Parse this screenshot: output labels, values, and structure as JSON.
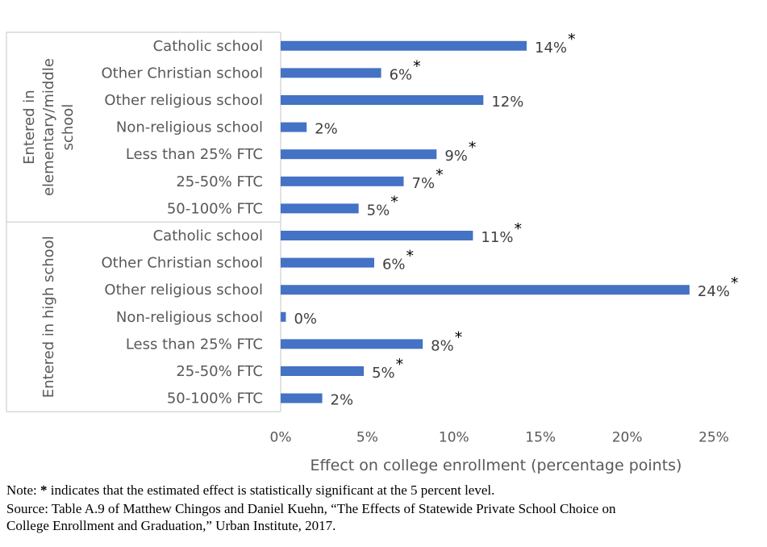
{
  "chart_data": {
    "type": "bar",
    "orientation": "horizontal",
    "xlabel": "Effect on college enrollment (percentage points)",
    "xlim": [
      0,
      25
    ],
    "x_ticks": [
      "0%",
      "5%",
      "10%",
      "15%",
      "20%",
      "25%"
    ],
    "groups": [
      {
        "name": "Entered in elementary/middle school",
        "name_lines": [
          "Entered in",
          "elementary/middle",
          "school"
        ],
        "bars": [
          {
            "category": "Catholic school",
            "value": 14.2,
            "label": "14%",
            "significant": true
          },
          {
            "category": "Other Christian school",
            "value": 5.8,
            "label": "6%",
            "significant": true
          },
          {
            "category": "Other religious school",
            "value": 11.7,
            "label": "12%",
            "significant": false
          },
          {
            "category": "Non-religious school",
            "value": 1.5,
            "label": "2%",
            "significant": false
          },
          {
            "category": "Less than 25% FTC",
            "value": 9.0,
            "label": "9%",
            "significant": true
          },
          {
            "category": "25-50% FTC",
            "value": 7.1,
            "label": "7%",
            "significant": true
          },
          {
            "category": "50-100% FTC",
            "value": 4.5,
            "label": "5%",
            "significant": true
          }
        ]
      },
      {
        "name": "Entered in high school",
        "name_lines": [
          "Entered in high school"
        ],
        "bars": [
          {
            "category": "Catholic school",
            "value": 11.1,
            "label": "11%",
            "significant": true
          },
          {
            "category": "Other Christian school",
            "value": 5.4,
            "label": "6%",
            "significant": true
          },
          {
            "category": "Other religious school",
            "value": 23.6,
            "label": "24%",
            "significant": true
          },
          {
            "category": "Non-religious school",
            "value": 0.3,
            "label": "0%",
            "significant": false
          },
          {
            "category": "Less than 25% FTC",
            "value": 8.2,
            "label": "8%",
            "significant": true
          },
          {
            "category": "25-50% FTC",
            "value": 4.8,
            "label": "5%",
            "significant": true
          },
          {
            "category": "50-100% FTC",
            "value": 2.4,
            "label": "2%",
            "significant": false
          }
        ]
      }
    ],
    "bar_color": "#4472C4",
    "significance_marker": "*"
  },
  "footnotes": {
    "note_prefix": "Note: ",
    "note_star": "*",
    "note_text": " indicates that the estimated effect is statistically significant at the 5 percent level.",
    "source_line1": "Source: Table A.9 of Matthew Chingos and Daniel Kuehn, “The Effects of Statewide Private School Choice on",
    "source_line2": "College Enrollment and Graduation,” Urban Institute, 2017."
  }
}
